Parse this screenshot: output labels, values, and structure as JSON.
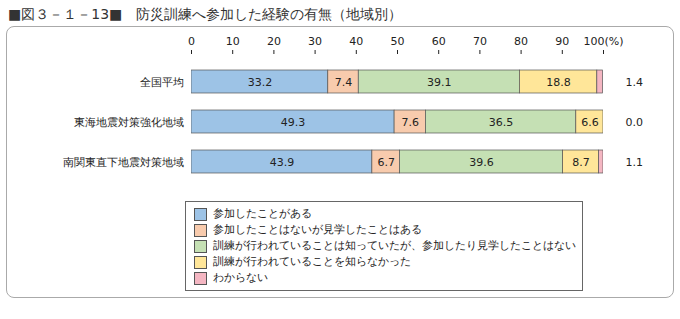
{
  "chart_data": {
    "type": "bar",
    "title": "■図３－１－13■　防災訓練へ参加した経験の有無（地域別）",
    "orientation": "horizontal",
    "stacked": true,
    "data_labels": true,
    "grid": false,
    "legend": "bottom",
    "categories": [
      "全国平均",
      "東海地震対策強化地域",
      "南関東直下地震対策地域"
    ],
    "xlim": [
      0,
      100
    ],
    "xticks": [
      0,
      10,
      20,
      30,
      40,
      50,
      60,
      70,
      80,
      90,
      {
        "value": 100,
        "label": "100(%)"
      }
    ],
    "series": [
      {
        "name": "参加したことがある",
        "color": "#9dc3e6",
        "values": [
          33.2,
          49.3,
          43.9
        ]
      },
      {
        "name": "参加したことはないが見学したことはある",
        "color": "#f8cbad",
        "values": [
          7.4,
          7.6,
          6.7
        ]
      },
      {
        "name": "訓練が行われていることは知っていたが、参加したり見学したことはない",
        "color": "#c5e0b4",
        "values": [
          39.1,
          36.5,
          39.6
        ]
      },
      {
        "name": "訓練が行われていることを知らなかった",
        "color": "#ffe699",
        "values": [
          18.8,
          6.6,
          8.7
        ]
      },
      {
        "name": "わからない",
        "color": "#f4b6c2",
        "values": [
          1.4,
          0.0,
          1.1
        ],
        "value_labels": [
          "1.4",
          "0.0",
          "1.1"
        ]
      }
    ]
  }
}
